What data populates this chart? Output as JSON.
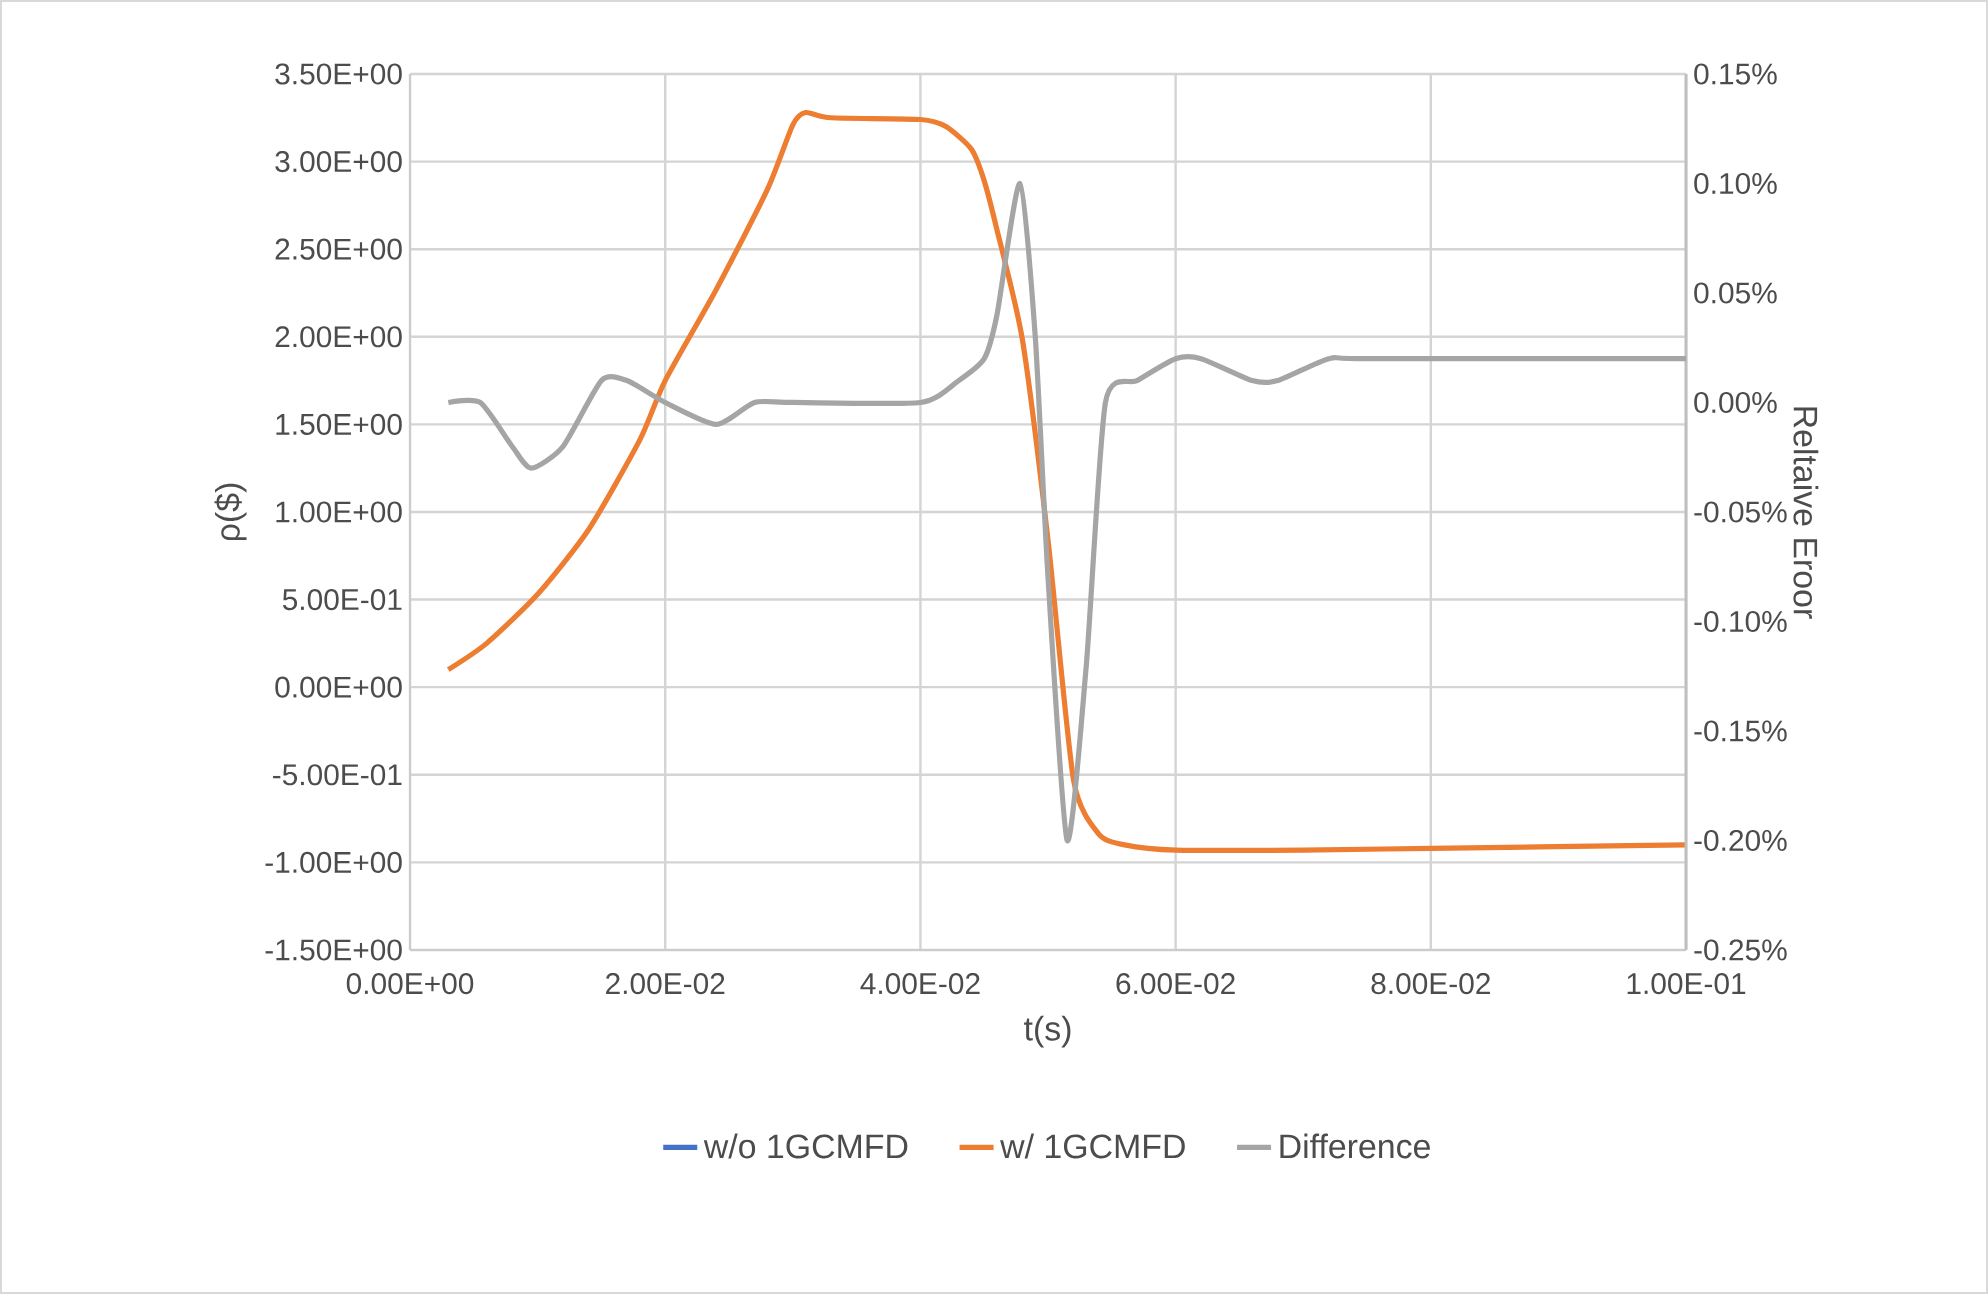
{
  "chart_data": {
    "type": "line",
    "xlabel": "t(s)",
    "ylabel": "ρ($)",
    "y2label": "Reltaive Eroor",
    "x": [
      0.003,
      0.006,
      0.01,
      0.014,
      0.018,
      0.02,
      0.024,
      0.028,
      0.03,
      0.031,
      0.033,
      0.04,
      0.042,
      0.044,
      0.045,
      0.046,
      0.048,
      0.05,
      0.052,
      0.054,
      0.056,
      0.06,
      0.07,
      0.08,
      0.1
    ],
    "series": [
      {
        "name": "w/o 1GCMFD",
        "color": "#4472c4",
        "values": [
          null,
          null,
          null,
          null,
          null,
          null,
          null,
          null,
          null,
          null,
          null,
          null,
          null,
          null,
          null,
          null,
          null,
          null,
          null,
          null,
          null,
          null,
          null,
          null,
          null
        ]
      },
      {
        "name": "w/ 1GCMFD",
        "color": "#ed7d31",
        "values": [
          0.1,
          0.25,
          0.53,
          0.9,
          1.41,
          1.75,
          2.27,
          2.84,
          3.21,
          3.28,
          3.25,
          3.24,
          3.2,
          3.07,
          2.89,
          2.61,
          1.98,
          0.84,
          -0.53,
          -0.84,
          -0.9,
          -0.93,
          -0.93,
          -0.92,
          -0.9
        ]
      },
      {
        "name": "Difference",
        "color": "#a5a5a5",
        "axis": "y2",
        "x": [
          0.003,
          0.0055,
          0.008,
          0.0095,
          0.012,
          0.015,
          0.017,
          0.02,
          0.024,
          0.027,
          0.03,
          0.04,
          0.043,
          0.045,
          0.046,
          0.0478,
          0.049,
          0.05,
          0.0515,
          0.053,
          0.0545,
          0.057,
          0.06,
          0.062,
          0.066,
          0.068,
          0.072,
          0.075,
          0.1
        ],
        "values": [
          0.0,
          0.0,
          -0.0002,
          -0.0003,
          -0.0002,
          0.0001,
          0.0001,
          0.0,
          -0.0001,
          0.0,
          0.0,
          0.0,
          0.0001,
          0.0002,
          0.0004,
          0.001,
          0.0003,
          -0.0008,
          -0.002,
          -0.0012,
          0.0,
          0.0001,
          0.0002,
          0.0002,
          0.0001,
          0.0001,
          0.0002,
          0.0002,
          0.0002
        ]
      }
    ],
    "xlim": [
      0,
      0.1
    ],
    "xticks": [
      {
        "value": 0,
        "label": "0.00E+00"
      },
      {
        "value": 0.02,
        "label": "2.00E-02"
      },
      {
        "value": 0.04,
        "label": "4.00E-02"
      },
      {
        "value": 0.06,
        "label": "6.00E-02"
      },
      {
        "value": 0.08,
        "label": "8.00E-02"
      },
      {
        "value": 0.1,
        "label": "1.00E-01"
      }
    ],
    "ylim": [
      -1.5,
      3.5
    ],
    "yticks": [
      {
        "value": -1.5,
        "label": "-1.50E+00"
      },
      {
        "value": -1.0,
        "label": "-1.00E+00"
      },
      {
        "value": -0.5,
        "label": "-5.00E-01"
      },
      {
        "value": 0,
        "label": "0.00E+00"
      },
      {
        "value": 0.5,
        "label": "5.00E-01"
      },
      {
        "value": 1.0,
        "label": "1.00E+00"
      },
      {
        "value": 1.5,
        "label": "1.50E+00"
      },
      {
        "value": 2.0,
        "label": "2.00E+00"
      },
      {
        "value": 2.5,
        "label": "2.50E+00"
      },
      {
        "value": 3.0,
        "label": "3.00E+00"
      },
      {
        "value": 3.5,
        "label": "3.50E+00"
      }
    ],
    "y2lim": [
      -0.0025,
      0.0015
    ],
    "y2ticks": [
      {
        "value": -0.0025,
        "label": "-0.25%"
      },
      {
        "value": -0.002,
        "label": "-0.20%"
      },
      {
        "value": -0.0015,
        "label": "-0.15%"
      },
      {
        "value": -0.001,
        "label": "-0.10%"
      },
      {
        "value": -0.0005,
        "label": "-0.05%"
      },
      {
        "value": 0,
        "label": "0.00%"
      },
      {
        "value": 0.0005,
        "label": "0.05%"
      },
      {
        "value": 0.001,
        "label": "0.10%"
      },
      {
        "value": 0.0015,
        "label": "0.15%"
      }
    ],
    "grid": true,
    "legend": "bottom"
  }
}
